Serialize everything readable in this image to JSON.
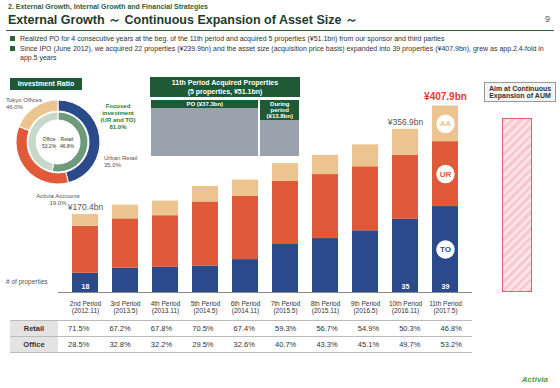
{
  "header": {
    "section": "2. External Growth, Internal Growth and Financial Strategies",
    "title": "External Growth ～ Continuous Expansion of Asset Size ～",
    "page": "9"
  },
  "bullets": [
    "Realized PO for 4 consecutive years at the beg. of the 11th period and acquired 5 properties (¥51.1bn) from our sponsor and third parties",
    "Since IPO (June 2012), we acquired 22 properties (¥239.9bn) and the asset size (acquisition price basis) expanded into 39 properties (¥407.9bn), grew as app.2.4-fold in app.5 years"
  ],
  "investment_ratio": {
    "title": "Investment Ratio",
    "focus": {
      "label": "Focused investment (UR and TO)",
      "value_label": "81.0%"
    },
    "outer": [
      {
        "name": "Tokyo Offices",
        "value": 46.0,
        "label": "46.0%",
        "color": "#2b4a8b"
      },
      {
        "name": "Urban Retail",
        "value": 35.0,
        "label": "35.0%",
        "color": "#e05a3a"
      },
      {
        "name": "Activia Accounts",
        "value": 19.0,
        "label": "19.0%",
        "color": "#ebc48f"
      }
    ],
    "inner": [
      {
        "name": "Office",
        "value": 53.2,
        "label": "53.2%",
        "color": "#6f9a7c"
      },
      {
        "name": "Retail",
        "value": 46.8,
        "label": "46.8%",
        "color": "#c8d8c8"
      }
    ]
  },
  "acquired": {
    "title": "11th Period Acquired Properties",
    "subtitle": "(5 properties, ¥51.1bn)",
    "groups": [
      {
        "label": "PO",
        "amount_label": "(¥37.3bn)",
        "value": 37.3
      },
      {
        "label": "During period",
        "amount_label": "(¥13.8bn)",
        "value": 13.8
      }
    ]
  },
  "target": {
    "label": "Aim at Continuous Expansion of AUM"
  },
  "chart_data": {
    "type": "bar",
    "stacked": true,
    "tick_labels": "x",
    "categories": [
      "2nd Period\n(2012.11)",
      "3rd Period\n(2013.5)",
      "4th Period\n(2013.11)",
      "5th Period\n(2014.5)",
      "6th Period\n(2014.11)",
      "7th Period\n(2015.5)",
      "8th Period\n(2015.11)",
      "9th Period\n(2016.5)",
      "10th Period\n(2016.11)",
      "11th Period\n(2017.5)"
    ],
    "ylim": [
      0,
      420
    ],
    "series": [
      {
        "name": "Tokyo Offices",
        "abbr": "TO",
        "color": "#2b4a8b",
        "values": [
          42,
          53,
          55,
          58,
          72,
          105,
          118,
          135,
          160,
          188
        ]
      },
      {
        "name": "Urban Retail",
        "abbr": "UR",
        "color": "#e05a3a",
        "values": [
          103,
          108,
          113,
          140,
          138,
          138,
          140,
          140,
          140,
          142
        ]
      },
      {
        "name": "Activia Accounts",
        "abbr": "AA",
        "color": "#ebc48f",
        "values": [
          25.4,
          30,
          32,
          34,
          36,
          39,
          42,
          48,
          56.9,
          77.9
        ]
      }
    ],
    "totals": {
      "values": [
        170.4,
        null,
        null,
        null,
        null,
        null,
        null,
        null,
        356.9,
        407.9
      ],
      "value_labels": [
        "¥170.4bn",
        null,
        null,
        null,
        null,
        null,
        null,
        null,
        "¥356.9bn",
        "¥407.9bn"
      ]
    },
    "property_counts": {
      "label": "# of properties",
      "values": [
        18,
        null,
        null,
        null,
        null,
        null,
        null,
        null,
        35,
        39
      ]
    }
  },
  "ratio_table": {
    "rows": [
      {
        "name": "Retail",
        "cells": [
          "71.5%",
          "67.2%",
          "67.8%",
          "70.5%",
          "67.4%",
          "59.3%",
          "56.7%",
          "54.9%",
          "50.3%",
          "46.8%"
        ]
      },
      {
        "name": "Office",
        "cells": [
          "28.5%",
          "32.8%",
          "32.2%",
          "29.5%",
          "32.6%",
          "40.7%",
          "43.3%",
          "45.1%",
          "49.7%",
          "53.2%"
        ]
      }
    ]
  },
  "footer": "Activia"
}
